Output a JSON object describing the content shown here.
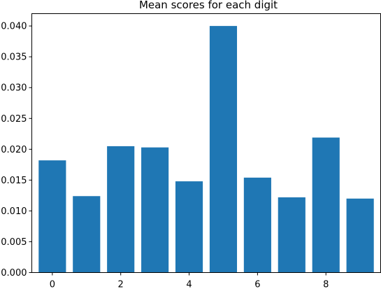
{
  "chart_data": {
    "type": "bar",
    "title": "Mean scores for each digit",
    "xlabel": "",
    "ylabel": "",
    "categories": [
      0,
      1,
      2,
      3,
      4,
      5,
      6,
      7,
      8,
      9
    ],
    "values": [
      0.0182,
      0.0124,
      0.0205,
      0.0203,
      0.0148,
      0.04,
      0.0154,
      0.0122,
      0.0219,
      0.012
    ],
    "xticks": [
      0,
      2,
      4,
      6,
      8
    ],
    "xtick_labels": [
      "0",
      "2",
      "4",
      "6",
      "8"
    ],
    "yticks": [
      0.0,
      0.005,
      0.01,
      0.015,
      0.02,
      0.025,
      0.03,
      0.035,
      0.04
    ],
    "ytick_labels": [
      "0.000",
      "0.005",
      "0.010",
      "0.015",
      "0.020",
      "0.025",
      "0.030",
      "0.035",
      "0.040"
    ],
    "xlim": [
      -0.6,
      9.6
    ],
    "ylim": [
      0,
      0.042
    ],
    "grid": false,
    "bar_color": "#1f77b4"
  }
}
